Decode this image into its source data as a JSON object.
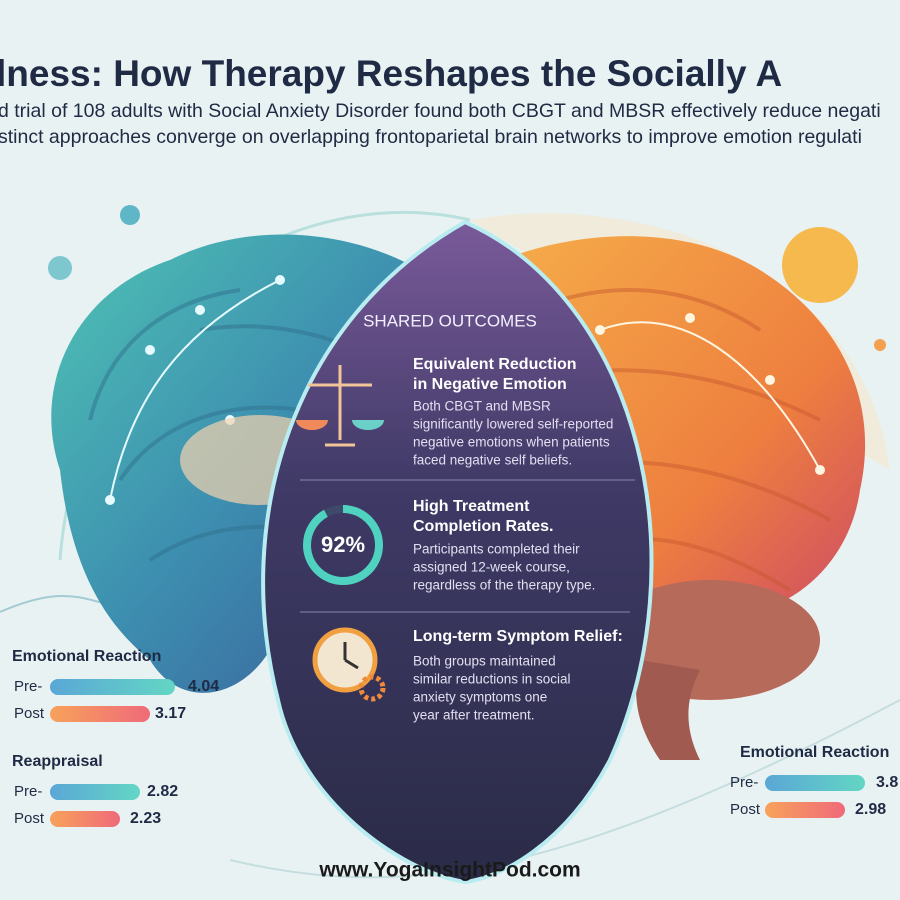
{
  "header": {
    "title": "lness: How Therapy Reshapes the Socially A",
    "subtitle_lines": [
      "d trial of 108 adults with Social Anxiety Disorder found both CBGT and MBSR effectively reduce negati",
      "stinct approaches converge on overlapping frontoparietal brain networks to improve emotion regulati"
    ]
  },
  "shared": {
    "heading": "SHARED OUTCOMES",
    "items": [
      {
        "title_lines": [
          "Equivalent Reduction",
          "in Negative Emotion"
        ],
        "body_lines": [
          "Both CBGT and MBSR",
          "significantly lowered self-reported",
          "negative emotions when patients",
          "faced negative self beliefs."
        ]
      },
      {
        "badge": "92%",
        "title_lines": [
          "High Treatment",
          "Completion Rates."
        ],
        "body_lines": [
          "Participants completed their",
          "assigned 12-week course,",
          "regardless of the therapy type."
        ]
      },
      {
        "title_lines": [
          "Long-term Symptom Relief:"
        ],
        "body_lines": [
          "Both groups maintained",
          "similar reductions in social",
          "anxiety symptoms one",
          "year after treatment."
        ]
      }
    ]
  },
  "left_stats": [
    {
      "label": "Emotional Reaction",
      "rows": [
        {
          "name": "Pre-",
          "value": "4.04"
        },
        {
          "name": "Post",
          "value": "3.17"
        }
      ]
    },
    {
      "label": "Reappraisal",
      "rows": [
        {
          "name": "Pre-",
          "value": "2.82"
        },
        {
          "name": "Post",
          "value": "2.23"
        }
      ]
    }
  ],
  "right_stats": [
    {
      "label": "Emotional Reaction",
      "rows": [
        {
          "name": "Pre-",
          "value": "3.8"
        },
        {
          "name": "Post",
          "value": "2.98"
        }
      ]
    }
  ],
  "footer": "www.YogaInsightPod.com"
}
